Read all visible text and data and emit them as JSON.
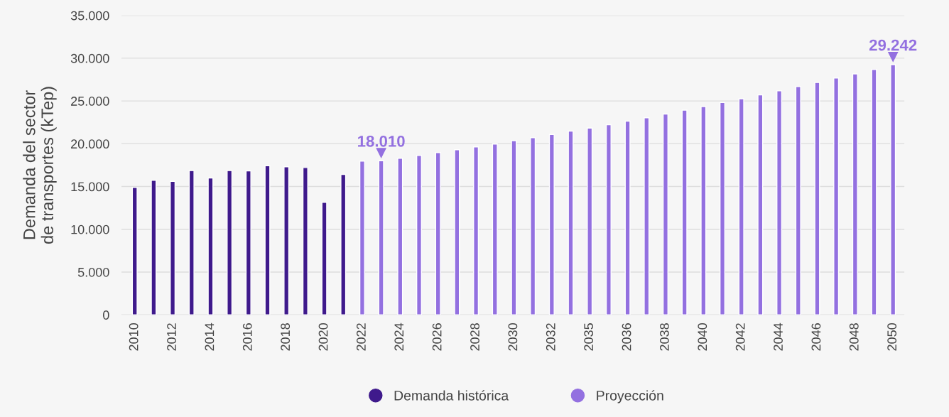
{
  "chart_data": {
    "type": "bar",
    "ylabel": "Demanda del sector\nde transportes (kTep)",
    "categories": [
      "2010",
      null,
      "2012",
      null,
      "2014",
      null,
      "2016",
      null,
      "2018",
      null,
      "2020",
      null,
      "2022",
      null,
      "2024",
      null,
      "2026",
      null,
      "2028",
      null,
      "2030",
      null,
      "2032",
      null,
      "2035",
      null,
      "2036",
      null,
      "2038",
      null,
      "2040",
      null,
      "2042",
      null,
      "2044",
      null,
      "2046",
      null,
      "2048",
      null,
      "2050"
    ],
    "series": [
      {
        "name": "Demanda histórica",
        "color": "#3f1a8c",
        "values": [
          14900,
          15720,
          15610,
          16860,
          16000,
          16860,
          16830,
          17420,
          17310,
          17220,
          13160,
          16420,
          null,
          null,
          null,
          null,
          null,
          null,
          null,
          null,
          null,
          null,
          null,
          null,
          null,
          null,
          null,
          null,
          null,
          null,
          null,
          null,
          null,
          null,
          null,
          null,
          null,
          null,
          null,
          null,
          null
        ]
      },
      {
        "name": "Proyección",
        "color": "#9370e0",
        "values": [
          null,
          null,
          null,
          null,
          null,
          null,
          null,
          null,
          null,
          null,
          null,
          null,
          17970,
          18010,
          18310,
          18640,
          18970,
          19300,
          19640,
          19970,
          20360,
          20700,
          21090,
          21480,
          21840,
          22230,
          22650,
          23040,
          23480,
          23930,
          24340,
          24820,
          25260,
          25710,
          26180,
          26690,
          27160,
          27690,
          28160,
          28690,
          29242
        ],
        "value_labels": [
          null,
          null,
          null,
          null,
          null,
          null,
          null,
          null,
          null,
          null,
          null,
          null,
          null,
          "18.010",
          null,
          null,
          null,
          null,
          null,
          null,
          null,
          null,
          null,
          null,
          null,
          null,
          null,
          null,
          null,
          null,
          null,
          null,
          null,
          null,
          null,
          null,
          null,
          null,
          null,
          null,
          "29.242"
        ]
      }
    ],
    "ylim": [
      0,
      35000
    ],
    "yticks": [
      0,
      {
        "value": 5000,
        "label": "5.000"
      },
      {
        "value": 10000,
        "label": "10.000"
      },
      {
        "value": 15000,
        "label": "15.000"
      },
      {
        "value": 20000,
        "label": "20.000"
      },
      {
        "value": 25000,
        "label": "25.000"
      },
      {
        "value": 30000,
        "label": "30.000"
      },
      {
        "value": 35000,
        "label": "35.000"
      }
    ],
    "grid": "y",
    "legend": "bottom",
    "marker": "circle"
  }
}
